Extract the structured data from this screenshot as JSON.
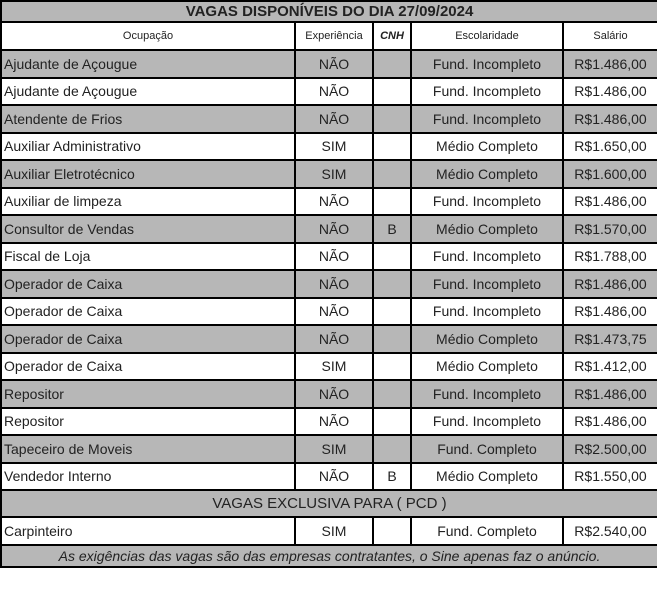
{
  "title": "VAGAS DISPONÍVEIS DO DIA 27/09/2024",
  "headers": [
    "Ocupação",
    "Experiência",
    "CNH",
    "Escolaridade",
    "Salário"
  ],
  "rows": [
    [
      "Ajudante de Açougue",
      "NÃO",
      "",
      "Fund. Incompleto",
      "R$1.486,00"
    ],
    [
      "Ajudante de Açougue",
      "NÃO",
      "",
      "Fund. Incompleto",
      "R$1.486,00"
    ],
    [
      "Atendente de Frios",
      "NÃO",
      "",
      "Fund. Incompleto",
      "R$1.486,00"
    ],
    [
      "Auxiliar Administrativo",
      "SIM",
      "",
      "Médio Completo",
      "R$1.650,00"
    ],
    [
      "Auxiliar Eletrotécnico",
      "SIM",
      "",
      "Médio Completo",
      "R$1.600,00"
    ],
    [
      "Auxiliar de limpeza",
      "NÃO",
      "",
      "Fund. Incompleto",
      "R$1.486,00"
    ],
    [
      "Consultor de Vendas",
      "NÃO",
      "B",
      "Médio Completo",
      "R$1.570,00"
    ],
    [
      "Fiscal de Loja",
      "NÃO",
      "",
      "Fund. Incompleto",
      "R$1.788,00"
    ],
    [
      "Operador de Caixa",
      "NÃO",
      "",
      "Fund. Incompleto",
      "R$1.486,00"
    ],
    [
      "Operador de Caixa",
      "NÃO",
      "",
      "Fund. Incompleto",
      "R$1.486,00"
    ],
    [
      "Operador de Caixa",
      "NÃO",
      "",
      "Médio Completo",
      "R$1.473,75"
    ],
    [
      "Operador de Caixa",
      "SIM",
      "",
      "Médio Completo",
      "R$1.412,00"
    ],
    [
      "Repositor",
      "NÃO",
      "",
      "Fund. Incompleto",
      "R$1.486,00"
    ],
    [
      "Repositor",
      "NÃO",
      "",
      "Fund. Incompleto",
      "R$1.486,00"
    ],
    [
      "Tapeceiro de Moveis",
      "SIM",
      "",
      "Fund. Completo",
      "R$2.500,00"
    ],
    [
      "Vendedor Interno",
      "NÃO",
      "B",
      "Médio Completo",
      "R$1.550,00"
    ]
  ],
  "pcd_title": "VAGAS EXCLUSIVA PARA ( PCD )",
  "pcd_rows": [
    [
      "Carpinteiro",
      "SIM",
      "",
      "Fund. Completo",
      "R$2.540,00"
    ]
  ],
  "footer": "As exigências das vagas são das empresas contratantes, o Sine apenas faz o anúncio.",
  "colors": {
    "row_gray": "#b7b7b7",
    "border": "#000000"
  }
}
